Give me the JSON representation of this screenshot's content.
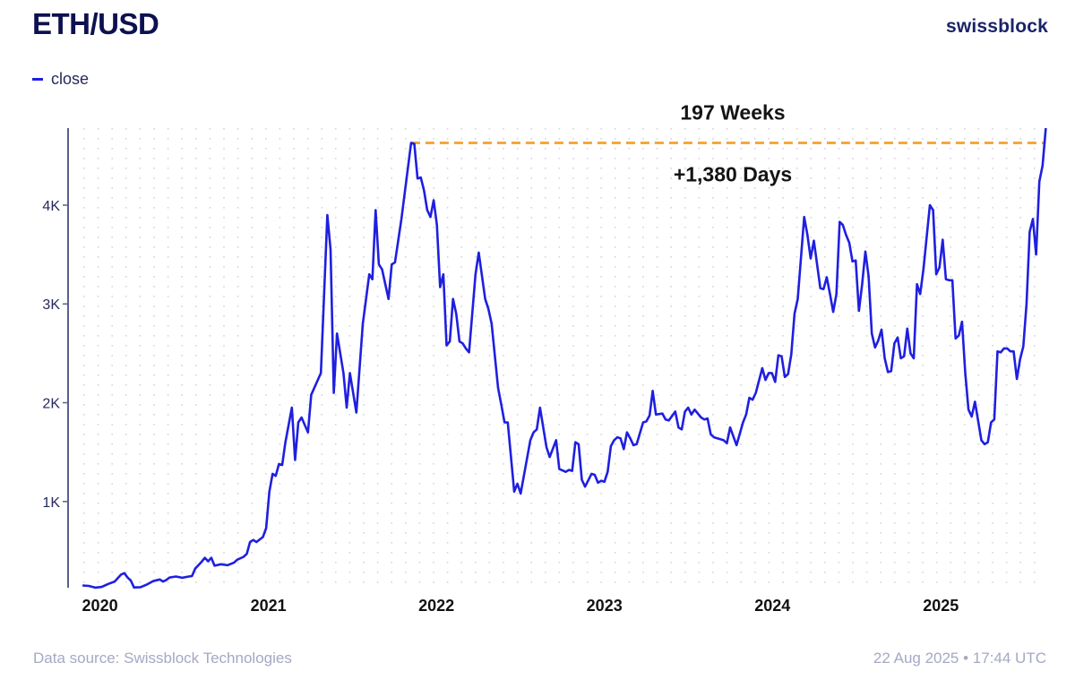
{
  "header": {
    "title": "ETH/USD",
    "brand": "swissblock"
  },
  "legend": {
    "items": [
      {
        "label": "close",
        "color": "#1f1fe0"
      }
    ]
  },
  "footer": {
    "source": "Data source: Swissblock Technologies",
    "timestamp": "22 Aug 2025 • 17:44 UTC"
  },
  "chart_data": {
    "type": "line",
    "title": "ETH/USD",
    "xlabel": "",
    "ylabel": "",
    "x_ticks": [
      "2020",
      "2021",
      "2022",
      "2023",
      "2024",
      "2025"
    ],
    "y_ticks": [
      {
        "value": 1000,
        "label": "1K"
      },
      {
        "value": 2000,
        "label": "2K"
      },
      {
        "value": 3000,
        "label": "3K"
      },
      {
        "value": 4000,
        "label": "4K"
      }
    ],
    "ylim": [
      127,
      4780
    ],
    "xlim": [
      "2019-11-20",
      "2025-08-22"
    ],
    "grid": "dotted",
    "legend_position": "top-left",
    "series": [
      {
        "name": "close",
        "color": "#1f1fe0",
        "points": [
          [
            "2019-11-24",
            150
          ],
          [
            "2019-12-08",
            145
          ],
          [
            "2019-12-22",
            128
          ],
          [
            "2020-01-05",
            135
          ],
          [
            "2020-01-19",
            165
          ],
          [
            "2020-02-02",
            190
          ],
          [
            "2020-02-16",
            260
          ],
          [
            "2020-02-23",
            275
          ],
          [
            "2020-03-01",
            230
          ],
          [
            "2020-03-08",
            200
          ],
          [
            "2020-03-15",
            130
          ],
          [
            "2020-03-29",
            132
          ],
          [
            "2020-04-12",
            160
          ],
          [
            "2020-04-26",
            195
          ],
          [
            "2020-05-10",
            210
          ],
          [
            "2020-05-17",
            190
          ],
          [
            "2020-05-24",
            205
          ],
          [
            "2020-05-31",
            230
          ],
          [
            "2020-06-14",
            240
          ],
          [
            "2020-06-28",
            228
          ],
          [
            "2020-07-12",
            240
          ],
          [
            "2020-07-19",
            245
          ],
          [
            "2020-07-26",
            320
          ],
          [
            "2020-08-09",
            390
          ],
          [
            "2020-08-16",
            430
          ],
          [
            "2020-08-23",
            395
          ],
          [
            "2020-08-30",
            430
          ],
          [
            "2020-09-06",
            350
          ],
          [
            "2020-09-20",
            365
          ],
          [
            "2020-10-04",
            355
          ],
          [
            "2020-10-18",
            380
          ],
          [
            "2020-10-25",
            410
          ],
          [
            "2020-11-08",
            440
          ],
          [
            "2020-11-15",
            470
          ],
          [
            "2020-11-22",
            590
          ],
          [
            "2020-11-29",
            610
          ],
          [
            "2020-12-06",
            590
          ],
          [
            "2020-12-20",
            640
          ],
          [
            "2020-12-27",
            730
          ],
          [
            "2021-01-03",
            1100
          ],
          [
            "2021-01-10",
            1280
          ],
          [
            "2021-01-17",
            1260
          ],
          [
            "2021-01-24",
            1380
          ],
          [
            "2021-01-31",
            1370
          ],
          [
            "2021-02-07",
            1600
          ],
          [
            "2021-02-21",
            1950
          ],
          [
            "2021-02-28",
            1420
          ],
          [
            "2021-03-07",
            1800
          ],
          [
            "2021-03-14",
            1850
          ],
          [
            "2021-03-28",
            1700
          ],
          [
            "2021-04-04",
            2080
          ],
          [
            "2021-04-25",
            2300
          ],
          [
            "2021-05-09",
            3900
          ],
          [
            "2021-05-16",
            3550
          ],
          [
            "2021-05-23",
            2100
          ],
          [
            "2021-05-30",
            2700
          ],
          [
            "2021-06-13",
            2300
          ],
          [
            "2021-06-20",
            1950
          ],
          [
            "2021-06-27",
            2300
          ],
          [
            "2021-07-11",
            1900
          ],
          [
            "2021-07-25",
            2800
          ],
          [
            "2021-08-08",
            3300
          ],
          [
            "2021-08-15",
            3250
          ],
          [
            "2021-08-22",
            3950
          ],
          [
            "2021-08-29",
            3400
          ],
          [
            "2021-09-05",
            3350
          ],
          [
            "2021-09-19",
            3050
          ],
          [
            "2021-09-26",
            3400
          ],
          [
            "2021-10-03",
            3420
          ],
          [
            "2021-10-17",
            3860
          ],
          [
            "2021-11-07",
            4630
          ],
          [
            "2021-11-14",
            4620
          ],
          [
            "2021-11-21",
            4270
          ],
          [
            "2021-11-28",
            4280
          ],
          [
            "2021-12-05",
            4150
          ],
          [
            "2021-12-12",
            3950
          ],
          [
            "2021-12-19",
            3880
          ],
          [
            "2021-12-26",
            4050
          ],
          [
            "2022-01-02",
            3800
          ],
          [
            "2022-01-09",
            3170
          ],
          [
            "2022-01-16",
            3300
          ],
          [
            "2022-01-23",
            2580
          ],
          [
            "2022-01-30",
            2620
          ],
          [
            "2022-02-06",
            3050
          ],
          [
            "2022-02-13",
            2900
          ],
          [
            "2022-02-20",
            2620
          ],
          [
            "2022-02-27",
            2600
          ],
          [
            "2022-03-06",
            2550
          ],
          [
            "2022-03-13",
            2510
          ],
          [
            "2022-03-27",
            3300
          ],
          [
            "2022-04-03",
            3520
          ],
          [
            "2022-04-17",
            3050
          ],
          [
            "2022-04-24",
            2950
          ],
          [
            "2022-05-01",
            2800
          ],
          [
            "2022-05-15",
            2150
          ],
          [
            "2022-05-22",
            1980
          ],
          [
            "2022-05-29",
            1800
          ],
          [
            "2022-06-05",
            1800
          ],
          [
            "2022-06-19",
            1100
          ],
          [
            "2022-06-26",
            1180
          ],
          [
            "2022-07-03",
            1080
          ],
          [
            "2022-07-24",
            1620
          ],
          [
            "2022-07-31",
            1700
          ],
          [
            "2022-08-07",
            1730
          ],
          [
            "2022-08-14",
            1950
          ],
          [
            "2022-08-28",
            1550
          ],
          [
            "2022-09-04",
            1450
          ],
          [
            "2022-09-18",
            1620
          ],
          [
            "2022-09-25",
            1330
          ],
          [
            "2022-10-09",
            1300
          ],
          [
            "2022-10-16",
            1320
          ],
          [
            "2022-10-23",
            1310
          ],
          [
            "2022-10-30",
            1600
          ],
          [
            "2022-11-06",
            1580
          ],
          [
            "2022-11-13",
            1220
          ],
          [
            "2022-11-20",
            1150
          ],
          [
            "2022-12-04",
            1280
          ],
          [
            "2022-12-11",
            1270
          ],
          [
            "2022-12-18",
            1190
          ],
          [
            "2022-12-25",
            1210
          ],
          [
            "2023-01-01",
            1200
          ],
          [
            "2023-01-08",
            1300
          ],
          [
            "2023-01-15",
            1560
          ],
          [
            "2023-01-22",
            1620
          ],
          [
            "2023-01-29",
            1650
          ],
          [
            "2023-02-05",
            1640
          ],
          [
            "2023-02-12",
            1530
          ],
          [
            "2023-02-19",
            1700
          ],
          [
            "2023-02-26",
            1640
          ],
          [
            "2023-03-05",
            1570
          ],
          [
            "2023-03-12",
            1580
          ],
          [
            "2023-03-26",
            1800
          ],
          [
            "2023-04-02",
            1810
          ],
          [
            "2023-04-09",
            1870
          ],
          [
            "2023-04-16",
            2120
          ],
          [
            "2023-04-23",
            1880
          ],
          [
            "2023-05-07",
            1890
          ],
          [
            "2023-05-14",
            1830
          ],
          [
            "2023-05-21",
            1820
          ],
          [
            "2023-06-04",
            1910
          ],
          [
            "2023-06-11",
            1750
          ],
          [
            "2023-06-18",
            1730
          ],
          [
            "2023-06-25",
            1910
          ],
          [
            "2023-07-02",
            1950
          ],
          [
            "2023-07-09",
            1880
          ],
          [
            "2023-07-16",
            1930
          ],
          [
            "2023-07-30",
            1850
          ],
          [
            "2023-08-06",
            1830
          ],
          [
            "2023-08-13",
            1840
          ],
          [
            "2023-08-20",
            1680
          ],
          [
            "2023-08-27",
            1650
          ],
          [
            "2023-09-10",
            1630
          ],
          [
            "2023-09-17",
            1620
          ],
          [
            "2023-09-24",
            1590
          ],
          [
            "2023-10-01",
            1750
          ],
          [
            "2023-10-15",
            1570
          ],
          [
            "2023-10-29",
            1800
          ],
          [
            "2023-11-05",
            1880
          ],
          [
            "2023-11-12",
            2050
          ],
          [
            "2023-11-19",
            2030
          ],
          [
            "2023-11-26",
            2100
          ],
          [
            "2023-12-10",
            2350
          ],
          [
            "2023-12-17",
            2230
          ],
          [
            "2023-12-24",
            2300
          ],
          [
            "2023-12-31",
            2300
          ],
          [
            "2024-01-07",
            2210
          ],
          [
            "2024-01-14",
            2480
          ],
          [
            "2024-01-21",
            2470
          ],
          [
            "2024-01-28",
            2260
          ],
          [
            "2024-02-04",
            2290
          ],
          [
            "2024-02-11",
            2490
          ],
          [
            "2024-02-18",
            2900
          ],
          [
            "2024-02-25",
            3050
          ],
          [
            "2024-03-10",
            3880
          ],
          [
            "2024-03-17",
            3700
          ],
          [
            "2024-03-24",
            3460
          ],
          [
            "2024-03-31",
            3640
          ],
          [
            "2024-04-14",
            3160
          ],
          [
            "2024-04-21",
            3150
          ],
          [
            "2024-04-28",
            3270
          ],
          [
            "2024-05-05",
            3100
          ],
          [
            "2024-05-12",
            2920
          ],
          [
            "2024-05-19",
            3100
          ],
          [
            "2024-05-26",
            3830
          ],
          [
            "2024-06-02",
            3800
          ],
          [
            "2024-06-09",
            3700
          ],
          [
            "2024-06-16",
            3620
          ],
          [
            "2024-06-23",
            3430
          ],
          [
            "2024-06-30",
            3440
          ],
          [
            "2024-07-07",
            2930
          ],
          [
            "2024-07-14",
            3200
          ],
          [
            "2024-07-21",
            3530
          ],
          [
            "2024-07-28",
            3280
          ],
          [
            "2024-08-04",
            2700
          ],
          [
            "2024-08-11",
            2560
          ],
          [
            "2024-08-18",
            2630
          ],
          [
            "2024-08-25",
            2740
          ],
          [
            "2024-09-01",
            2450
          ],
          [
            "2024-09-08",
            2310
          ],
          [
            "2024-09-15",
            2320
          ],
          [
            "2024-09-22",
            2600
          ],
          [
            "2024-09-29",
            2660
          ],
          [
            "2024-10-06",
            2450
          ],
          [
            "2024-10-13",
            2470
          ],
          [
            "2024-10-20",
            2750
          ],
          [
            "2024-10-27",
            2500
          ],
          [
            "2024-11-03",
            2450
          ],
          [
            "2024-11-10",
            3200
          ],
          [
            "2024-11-17",
            3100
          ],
          [
            "2024-11-24",
            3350
          ],
          [
            "2024-12-08",
            4000
          ],
          [
            "2024-12-15",
            3950
          ],
          [
            "2024-12-22",
            3300
          ],
          [
            "2024-12-29",
            3370
          ],
          [
            "2025-01-05",
            3650
          ],
          [
            "2025-01-12",
            3250
          ],
          [
            "2025-01-19",
            3240
          ],
          [
            "2025-01-26",
            3240
          ],
          [
            "2025-02-02",
            2650
          ],
          [
            "2025-02-09",
            2680
          ],
          [
            "2025-02-16",
            2820
          ],
          [
            "2025-02-23",
            2300
          ],
          [
            "2025-03-02",
            1930
          ],
          [
            "2025-03-09",
            1860
          ],
          [
            "2025-03-16",
            2010
          ],
          [
            "2025-03-30",
            1620
          ],
          [
            "2025-04-06",
            1580
          ],
          [
            "2025-04-13",
            1600
          ],
          [
            "2025-04-20",
            1800
          ],
          [
            "2025-04-27",
            1830
          ],
          [
            "2025-05-04",
            2520
          ],
          [
            "2025-05-11",
            2510
          ],
          [
            "2025-05-18",
            2550
          ],
          [
            "2025-05-25",
            2550
          ],
          [
            "2025-06-01",
            2520
          ],
          [
            "2025-06-08",
            2520
          ],
          [
            "2025-06-15",
            2240
          ],
          [
            "2025-06-22",
            2440
          ],
          [
            "2025-06-29",
            2570
          ],
          [
            "2025-07-06",
            3000
          ],
          [
            "2025-07-13",
            3730
          ],
          [
            "2025-07-20",
            3860
          ],
          [
            "2025-07-27",
            3500
          ],
          [
            "2025-08-03",
            4240
          ],
          [
            "2025-08-10",
            4400
          ],
          [
            "2025-08-17",
            4780
          ]
        ]
      }
    ],
    "annotations": {
      "ath_level": 4630,
      "ath_line_from": "2021-11-07",
      "ath_line_to": "2025-08-17",
      "ath_line_color": "#f5a73b",
      "label_top": "197 Weeks",
      "label_bottom": "+1,380 Days"
    }
  }
}
